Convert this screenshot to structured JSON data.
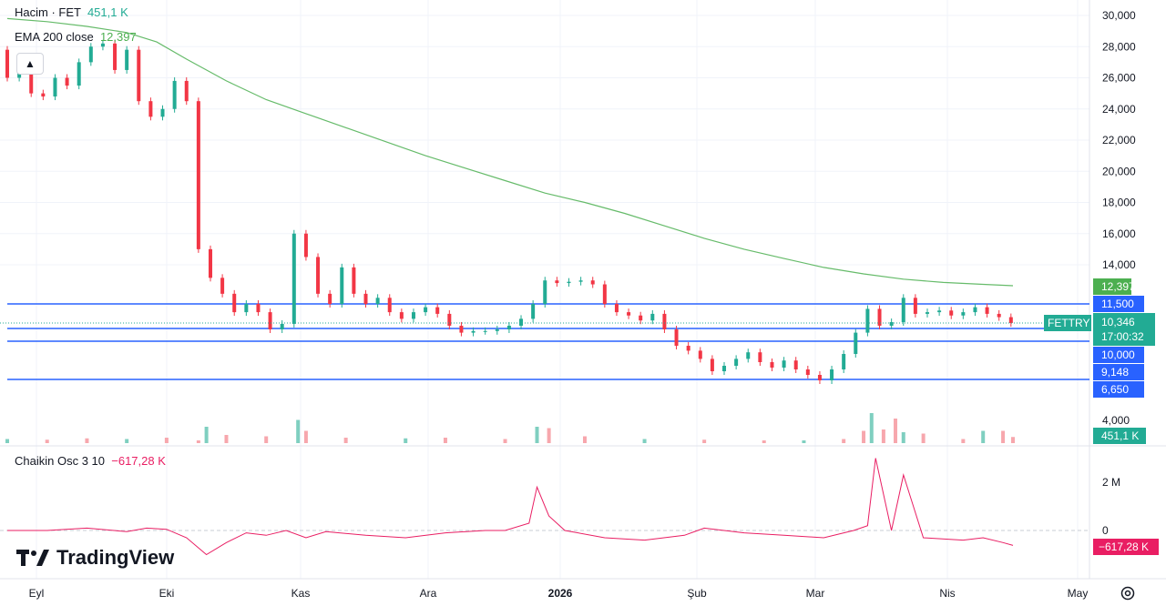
{
  "legend": {
    "volume_label": "Hacim · FET",
    "volume_value": "451,1 K",
    "ema_label": "EMA 200 close",
    "ema_value": "12,397",
    "osc_label": "Chaikin Osc",
    "osc_params": "3 10",
    "osc_value": "−617,28 K"
  },
  "logo_text": "TradingView",
  "colors": {
    "up": "#22ab94",
    "down": "#f23645",
    "ema": "#66bb6a",
    "hline": "#2962ff",
    "osc": "#e91e63",
    "volume_up": "#7fcfc0",
    "volume_down": "#f7a7ad"
  },
  "price_axis": {
    "ticks": [
      "30,000",
      "28,000",
      "26,000",
      "24,000",
      "22,000",
      "20,000",
      "18,000",
      "16,000",
      "14,000"
    ],
    "volume_tick": "4,000"
  },
  "osc_axis": {
    "ticks": [
      "2 M",
      "0"
    ]
  },
  "time_axis": {
    "labels": [
      "Eyl",
      "Eki",
      "Kas",
      "Ara",
      "2026",
      "Şub",
      "Mar",
      "Nis",
      "May"
    ]
  },
  "badges": {
    "ema": "12,397",
    "level_11500": "11,500",
    "symbol": "FETTRY",
    "last_price": "10,346",
    "countdown": "17:00:32",
    "level_10000": "10,000",
    "level_9148": "9,148",
    "level_6650": "6,650",
    "volume": "451,1 K",
    "osc": "−617,28 K"
  },
  "chart_data": {
    "type": "candlestick",
    "symbol": "FET",
    "price_levels": [
      11.5,
      10.0,
      9.148,
      6.65
    ],
    "last_price": 10.346,
    "ema200_last": 12.397,
    "ema200": [
      [
        0,
        29.8
      ],
      [
        20,
        29.6
      ],
      [
        40,
        29.3
      ],
      [
        60,
        28.9
      ],
      [
        75,
        28.3
      ],
      [
        90,
        27.2
      ],
      [
        110,
        25.8
      ],
      [
        130,
        24.6
      ],
      [
        150,
        23.7
      ],
      [
        170,
        22.8
      ],
      [
        190,
        21.9
      ],
      [
        210,
        21.0
      ],
      [
        230,
        20.2
      ],
      [
        250,
        19.4
      ],
      [
        270,
        18.6
      ],
      [
        290,
        18.0
      ],
      [
        310,
        17.3
      ],
      [
        330,
        16.5
      ],
      [
        350,
        15.7
      ],
      [
        370,
        15.0
      ],
      [
        390,
        14.4
      ],
      [
        410,
        13.8
      ],
      [
        430,
        13.3
      ],
      [
        450,
        12.9
      ],
      [
        470,
        12.65
      ],
      [
        490,
        12.5
      ],
      [
        505,
        12.397
      ]
    ],
    "candles": [
      [
        0,
        27.8,
        26.0
      ],
      [
        6,
        26.0,
        26.5
      ],
      [
        12,
        26.5,
        25.0
      ],
      [
        18,
        25.0,
        24.8
      ],
      [
        24,
        24.8,
        26.0
      ],
      [
        30,
        26.0,
        25.5
      ],
      [
        36,
        25.5,
        27.0
      ],
      [
        42,
        27.0,
        28.0
      ],
      [
        48,
        28.0,
        28.2
      ],
      [
        54,
        28.2,
        26.5
      ],
      [
        60,
        26.5,
        27.8
      ],
      [
        66,
        27.8,
        24.5
      ],
      [
        72,
        24.5,
        23.5
      ],
      [
        78,
        23.5,
        24.0
      ],
      [
        84,
        24.0,
        25.8
      ],
      [
        90,
        25.8,
        24.5
      ],
      [
        96,
        24.5,
        15.0
      ],
      [
        102,
        15.0,
        13.0
      ],
      [
        108,
        13.0,
        12.0
      ],
      [
        114,
        12.0,
        11.0
      ],
      [
        120,
        11.0,
        11.5
      ],
      [
        126,
        11.5,
        11.0
      ],
      [
        132,
        11.0,
        10.0
      ],
      [
        138,
        10.0,
        10.3
      ],
      [
        144,
        10.3,
        16.0
      ],
      [
        150,
        16.0,
        14.5
      ],
      [
        156,
        14.5,
        12.0
      ],
      [
        162,
        12.0,
        11.5
      ],
      [
        168,
        11.5,
        13.8
      ],
      [
        174,
        13.8,
        12.0
      ],
      [
        180,
        12.0,
        11.5
      ],
      [
        186,
        11.5,
        11.8
      ],
      [
        192,
        11.8,
        11.0
      ],
      [
        198,
        11.0,
        10.6
      ],
      [
        204,
        10.6,
        11.0
      ],
      [
        210,
        11.0,
        11.3
      ],
      [
        216,
        11.3,
        10.9
      ],
      [
        222,
        10.9,
        10.2
      ],
      [
        228,
        10.2,
        9.8
      ],
      [
        234,
        9.8,
        9.9
      ],
      [
        240,
        9.9,
        9.9
      ],
      [
        246,
        9.9,
        10.0
      ],
      [
        252,
        10.0,
        10.2
      ],
      [
        258,
        10.2,
        10.6
      ],
      [
        264,
        10.6,
        11.5
      ],
      [
        270,
        11.5,
        12.8
      ],
      [
        276,
        12.8,
        12.6
      ],
      [
        282,
        12.6,
        12.7
      ],
      [
        288,
        12.7,
        12.8
      ],
      [
        294,
        12.8,
        12.5
      ],
      [
        300,
        12.5,
        11.5
      ],
      [
        306,
        11.5,
        11.0
      ],
      [
        312,
        11.0,
        10.8
      ],
      [
        318,
        10.8,
        10.5
      ],
      [
        324,
        10.5,
        10.9
      ],
      [
        330,
        10.9,
        10.0
      ],
      [
        336,
        10.0,
        9.0
      ],
      [
        342,
        9.0,
        8.7
      ],
      [
        348,
        8.7,
        8.2
      ],
      [
        354,
        8.2,
        7.5
      ],
      [
        360,
        7.5,
        7.8
      ],
      [
        366,
        7.8,
        8.2
      ],
      [
        372,
        8.2,
        8.6
      ],
      [
        378,
        8.6,
        8.0
      ],
      [
        384,
        8.0,
        7.7
      ],
      [
        390,
        7.7,
        8.1
      ],
      [
        396,
        8.1,
        7.6
      ],
      [
        402,
        7.6,
        7.3
      ],
      [
        408,
        7.3,
        7.0
      ],
      [
        414,
        7.0,
        7.6
      ],
      [
        420,
        7.6,
        8.5
      ],
      [
        426,
        8.5,
        9.8
      ],
      [
        432,
        9.8,
        11.2
      ],
      [
        438,
        11.2,
        10.2
      ],
      [
        444,
        10.2,
        10.4
      ],
      [
        450,
        10.4,
        11.8
      ],
      [
        456,
        11.8,
        10.9
      ],
      [
        462,
        10.9,
        11.0
      ],
      [
        468,
        11.0,
        11.1
      ],
      [
        474,
        11.1,
        10.8
      ],
      [
        480,
        10.8,
        11.0
      ],
      [
        486,
        11.0,
        11.3
      ],
      [
        492,
        11.3,
        10.9
      ],
      [
        498,
        10.9,
        10.7
      ],
      [
        504,
        10.7,
        10.346
      ]
    ],
    "volume": [
      [
        0,
        0.3
      ],
      [
        20,
        0.25
      ],
      [
        40,
        0.35
      ],
      [
        60,
        0.3
      ],
      [
        80,
        0.4
      ],
      [
        96,
        0.2
      ],
      [
        100,
        1.2
      ],
      [
        110,
        0.6
      ],
      [
        130,
        0.5
      ],
      [
        146,
        1.7
      ],
      [
        150,
        0.9
      ],
      [
        170,
        0.4
      ],
      [
        200,
        0.35
      ],
      [
        220,
        0.4
      ],
      [
        250,
        0.3
      ],
      [
        266,
        1.2
      ],
      [
        272,
        1.1
      ],
      [
        290,
        0.5
      ],
      [
        320,
        0.3
      ],
      [
        350,
        0.25
      ],
      [
        380,
        0.2
      ],
      [
        400,
        0.2
      ],
      [
        420,
        0.3
      ],
      [
        430,
        0.9
      ],
      [
        434,
        2.2
      ],
      [
        440,
        1.0
      ],
      [
        446,
        1.8
      ],
      [
        450,
        0.8
      ],
      [
        460,
        0.7
      ],
      [
        480,
        0.3
      ],
      [
        490,
        0.9
      ],
      [
        500,
        0.9
      ],
      [
        505,
        0.45
      ]
    ],
    "chaikin_osc": [
      [
        0,
        0
      ],
      [
        20,
        0
      ],
      [
        40,
        0.1
      ],
      [
        60,
        -0.05
      ],
      [
        70,
        0.1
      ],
      [
        80,
        0.05
      ],
      [
        90,
        -0.3
      ],
      [
        100,
        -1.0
      ],
      [
        110,
        -0.5
      ],
      [
        120,
        -0.1
      ],
      [
        130,
        -0.2
      ],
      [
        140,
        0
      ],
      [
        150,
        -0.3
      ],
      [
        160,
        -0.05
      ],
      [
        180,
        -0.2
      ],
      [
        200,
        -0.3
      ],
      [
        220,
        -0.1
      ],
      [
        240,
        0
      ],
      [
        250,
        0
      ],
      [
        262,
        0.3
      ],
      [
        266,
        1.8
      ],
      [
        272,
        0.6
      ],
      [
        280,
        0
      ],
      [
        300,
        -0.3
      ],
      [
        320,
        -0.4
      ],
      [
        340,
        -0.2
      ],
      [
        350,
        0.1
      ],
      [
        370,
        -0.1
      ],
      [
        390,
        -0.2
      ],
      [
        410,
        -0.3
      ],
      [
        425,
        0
      ],
      [
        432,
        0.2
      ],
      [
        436,
        3.0
      ],
      [
        444,
        0
      ],
      [
        450,
        2.3
      ],
      [
        455,
        1.0
      ],
      [
        460,
        -0.3
      ],
      [
        480,
        -0.4
      ],
      [
        490,
        -0.3
      ],
      [
        500,
        -0.5
      ],
      [
        505,
        -0.617
      ]
    ],
    "time_labels": [
      "Eyl",
      "Eki",
      "Kas",
      "Ara",
      "2026",
      "Şub",
      "Mar",
      "Nis",
      "May"
    ]
  }
}
